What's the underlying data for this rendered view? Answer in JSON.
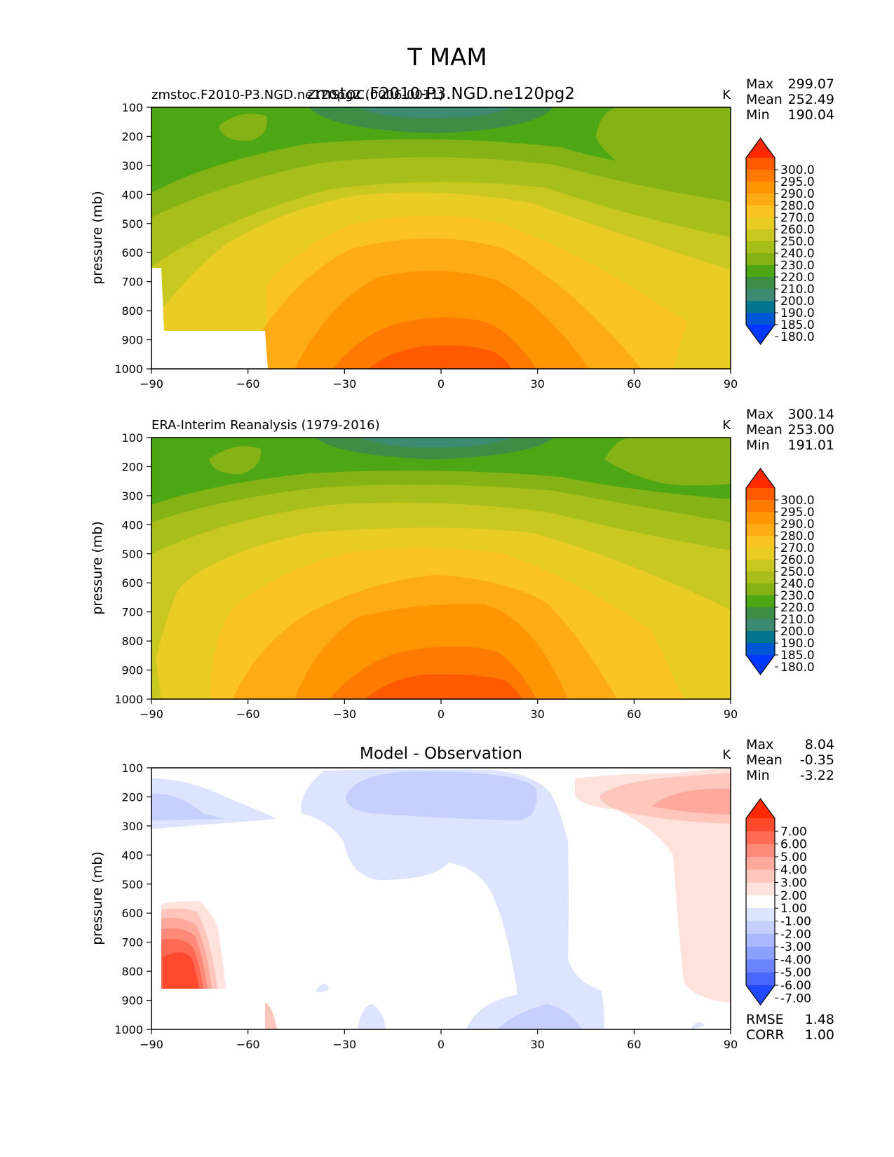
{
  "figure_title": "T MAM",
  "panel_ylabel": "pressure (mb)",
  "chart_data": [
    {
      "type": "heatmap",
      "title": "zmstoc.F2010-P3.NGD.ne120pg2",
      "left_label": "zmstoc.F2010-P3.NGD.ne120pg2 (0006-0011)",
      "units": "K",
      "xlabel": "",
      "ylabel": "pressure (mb)",
      "xlim": [
        -90,
        90
      ],
      "ylim": [
        1000,
        100
      ],
      "xticks": [
        "−90",
        "−60",
        "−30",
        "0",
        "30",
        "60",
        "90"
      ],
      "yticks": [
        "100",
        "200",
        "300",
        "400",
        "500",
        "600",
        "700",
        "800",
        "900",
        "1000"
      ],
      "stats": [
        [
          "Max",
          "299.07"
        ],
        [
          "Mean",
          "252.49"
        ],
        [
          "Min",
          "190.04"
        ]
      ],
      "colorbar": {
        "labels": [
          "300.0",
          "295.0",
          "290.0",
          "280.0",
          "270.0",
          "260.0",
          "250.0",
          "240.0",
          "230.0",
          "220.0",
          "210.0",
          "200.0",
          "190.0",
          "185.0",
          "180.0"
        ],
        "colors": [
          "#ff2a00",
          "#ff5a00",
          "#ff7a00",
          "#ff9500",
          "#ffab16",
          "#fcc423",
          "#e9cc24",
          "#c9c820",
          "#a8bf1b",
          "#85b316",
          "#4da614",
          "#3d8d46",
          "#3c8a72",
          "#02758f",
          "#0057d6",
          "#0038ff"
        ],
        "extend": "both"
      }
    },
    {
      "type": "heatmap",
      "title": "",
      "left_label": "ERA-Interim Reanalysis (1979-2016)",
      "units": "K",
      "xlabel": "",
      "ylabel": "pressure (mb)",
      "xlim": [
        -90,
        90
      ],
      "ylim": [
        1000,
        100
      ],
      "xticks": [
        "−90",
        "−60",
        "−30",
        "0",
        "30",
        "60",
        "90"
      ],
      "yticks": [
        "100",
        "200",
        "300",
        "400",
        "500",
        "600",
        "700",
        "800",
        "900",
        "1000"
      ],
      "stats": [
        [
          "Max",
          "300.14"
        ],
        [
          "Mean",
          "253.00"
        ],
        [
          "Min",
          "191.01"
        ]
      ],
      "colorbar": {
        "labels": [
          "300.0",
          "295.0",
          "290.0",
          "280.0",
          "270.0",
          "260.0",
          "250.0",
          "240.0",
          "230.0",
          "220.0",
          "210.0",
          "200.0",
          "190.0",
          "185.0",
          "180.0"
        ],
        "colors": [
          "#ff2a00",
          "#ff5a00",
          "#ff7a00",
          "#ff9500",
          "#ffab16",
          "#fcc423",
          "#e9cc24",
          "#c9c820",
          "#a8bf1b",
          "#85b316",
          "#4da614",
          "#3d8d46",
          "#3c8a72",
          "#02758f",
          "#0057d6",
          "#0038ff"
        ],
        "extend": "both"
      }
    },
    {
      "type": "heatmap",
      "title": "Model - Observation",
      "left_label": "",
      "units": "K",
      "xlabel": "",
      "ylabel": "pressure (mb)",
      "xlim": [
        -90,
        90
      ],
      "ylim": [
        1000,
        100
      ],
      "xticks": [
        "−90",
        "−60",
        "−30",
        "0",
        "30",
        "60",
        "90"
      ],
      "yticks": [
        "100",
        "200",
        "300",
        "400",
        "500",
        "600",
        "700",
        "800",
        "900",
        "1000"
      ],
      "stats": [
        [
          "Max",
          "8.04"
        ],
        [
          "Mean",
          "-0.35"
        ],
        [
          "Min",
          "-3.22"
        ]
      ],
      "extra_stats": [
        [
          "RMSE",
          "1.48"
        ],
        [
          "CORR",
          "1.00"
        ]
      ],
      "colorbar": {
        "labels": [
          "7.00",
          "6.00",
          "5.00",
          "4.00",
          "3.00",
          "2.00",
          "1.00",
          "-1.00",
          "-2.00",
          "-3.00",
          "-4.00",
          "-5.00",
          "-6.00",
          "-7.00"
        ],
        "colors": [
          "#ff2a00",
          "#ff4a2e",
          "#ff6a55",
          "#ff8a7a",
          "#ffa89c",
          "#ffc6bc",
          "#ffe2dc",
          "#ffffff",
          "#dde4ff",
          "#c5d0ff",
          "#a9b8ff",
          "#8ca0ff",
          "#6a84ff",
          "#4a68ff",
          "#2248ff"
        ],
        "extend": "both"
      }
    }
  ]
}
